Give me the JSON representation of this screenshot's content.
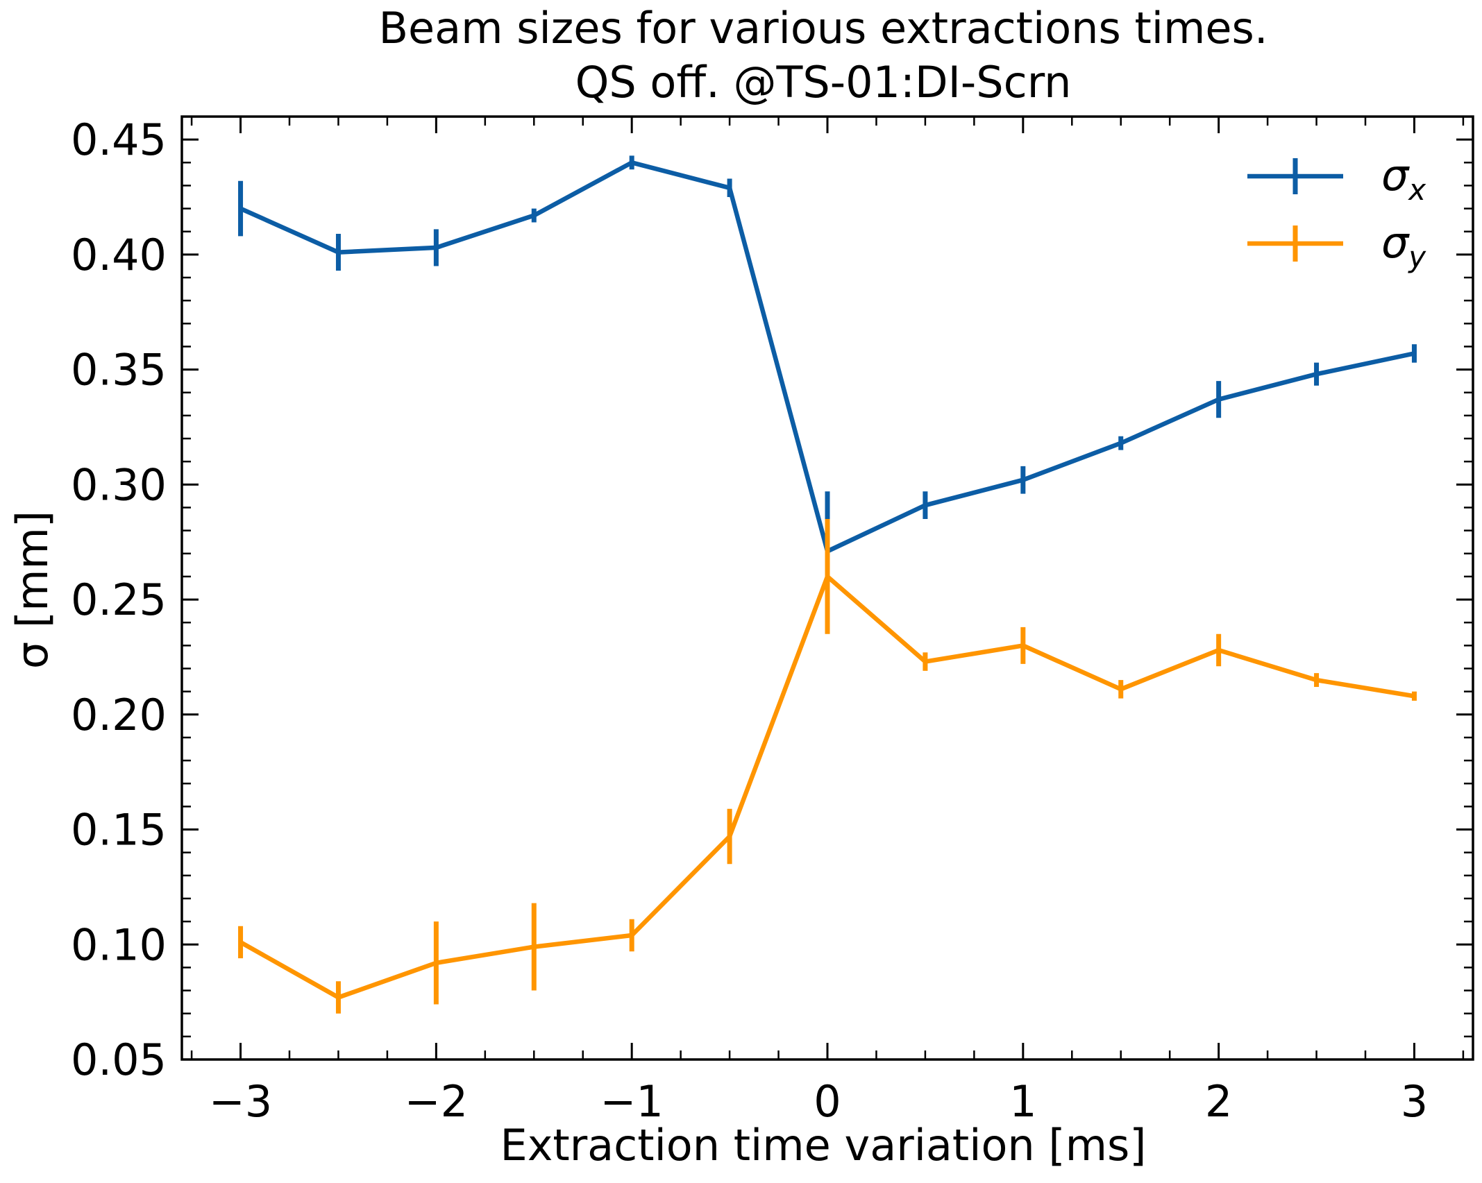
{
  "chart_data": {
    "type": "line",
    "title": [
      "Beam sizes for various extractions times.",
      "QS off. @TS-01:DI-Scrn"
    ],
    "xlabel": "Extraction time variation [ms]",
    "ylabel": "σ [mm]",
    "xlim": [
      -3.3,
      3.3
    ],
    "ylim": [
      0.05,
      0.46
    ],
    "xticks": [
      -3,
      -2,
      -1,
      0,
      1,
      2,
      3
    ],
    "xtick_labels": [
      "−3",
      "−2",
      "−1",
      "0",
      "1",
      "2",
      "3"
    ],
    "yticks": [
      0.05,
      0.1,
      0.15,
      0.2,
      0.25,
      0.3,
      0.35,
      0.4,
      0.45
    ],
    "ytick_labels": [
      "0.05",
      "0.10",
      "0.15",
      "0.20",
      "0.25",
      "0.30",
      "0.35",
      "0.40",
      "0.45"
    ],
    "grid": false,
    "legend_position": "top-right",
    "x": [
      -3,
      -2.5,
      -2,
      -1.5,
      -1,
      -0.5,
      0,
      0.5,
      1,
      1.5,
      2,
      2.5,
      3
    ],
    "series": [
      {
        "name": "σ",
        "subscript": "x",
        "color": "#0C5DA5",
        "values": [
          0.42,
          0.401,
          0.403,
          0.417,
          0.44,
          0.429,
          0.271,
          0.291,
          0.302,
          0.318,
          0.337,
          0.348,
          0.357
        ],
        "errors": [
          0.012,
          0.008,
          0.008,
          0.003,
          0.003,
          0.004,
          0.026,
          0.006,
          0.006,
          0.003,
          0.008,
          0.005,
          0.004
        ]
      },
      {
        "name": "σ",
        "subscript": "y",
        "color": "#FF9500",
        "values": [
          0.101,
          0.077,
          0.092,
          0.099,
          0.104,
          0.147,
          0.26,
          0.223,
          0.23,
          0.211,
          0.228,
          0.215,
          0.208
        ],
        "errors": [
          0.007,
          0.007,
          0.018,
          0.019,
          0.007,
          0.012,
          0.025,
          0.004,
          0.008,
          0.004,
          0.007,
          0.003,
          0.002
        ]
      }
    ]
  }
}
